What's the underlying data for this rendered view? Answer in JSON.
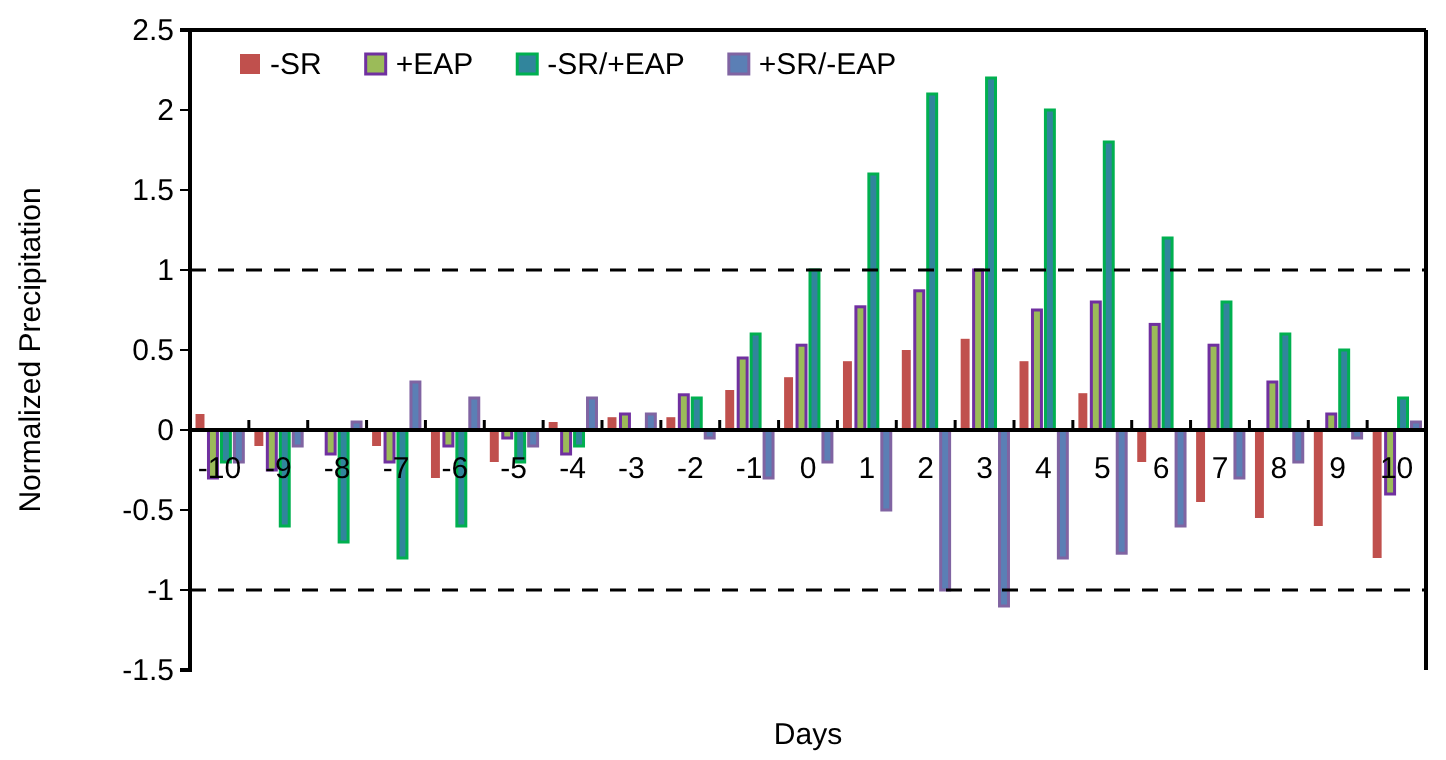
{
  "chart_data": {
    "type": "bar",
    "xlabel": "Days",
    "ylabel": "Normalized Precipitation",
    "categories": [
      "-10",
      "-9",
      "-8",
      "-7",
      "-6",
      "-5",
      "-4",
      "-3",
      "-2",
      "-1",
      "0",
      "1",
      "2",
      "3",
      "4",
      "5",
      "6",
      "7",
      "8",
      "9",
      "10"
    ],
    "series": [
      {
        "name": "-SR",
        "color": "#c0504d",
        "values": [
          0.1,
          -0.1,
          0,
          -0.1,
          -0.3,
          -0.2,
          0.05,
          0.08,
          0.08,
          0.25,
          0.33,
          0.43,
          0.5,
          0.57,
          0.43,
          0.23,
          -0.2,
          -0.45,
          -0.55,
          -0.6,
          -0.8
        ]
      },
      {
        "name": "+EAP",
        "color": "#9bbb59",
        "values": [
          -0.3,
          -0.25,
          -0.15,
          -0.2,
          -0.1,
          -0.05,
          -0.15,
          0.1,
          0.22,
          0.45,
          0.53,
          0.77,
          0.87,
          1.0,
          0.75,
          0.8,
          0.66,
          0.53,
          0.3,
          0.1,
          -0.4
        ]
      },
      {
        "name": "-SR/+EAP",
        "color": "#31859c",
        "values": [
          -0.2,
          -0.6,
          -0.7,
          -0.8,
          -0.6,
          -0.2,
          -0.1,
          0,
          0.2,
          0.6,
          1.0,
          1.6,
          2.1,
          2.2,
          2.0,
          1.8,
          1.2,
          0.8,
          0.6,
          0.5,
          0.2
        ]
      },
      {
        "name": "+SR/-EAP",
        "color": "#5b7fb5",
        "values": [
          -0.2,
          -0.1,
          0.05,
          0.3,
          0.2,
          -0.1,
          0.2,
          0.1,
          -0.05,
          -0.3,
          -0.2,
          -0.5,
          -1.0,
          -1.1,
          -0.8,
          -0.77,
          -0.6,
          -0.3,
          -0.2,
          -0.05,
          0.05
        ]
      }
    ],
    "ylim": [
      -1.5,
      2.5
    ],
    "yticks": [
      -1.5,
      -1,
      -0.5,
      0,
      0.5,
      1,
      1.5,
      2,
      2.5
    ],
    "ref_lines": [
      {
        "axis": "y",
        "value": 1,
        "line_style": "dashed"
      },
      {
        "axis": "y",
        "value": -1,
        "line_style": "dashed"
      }
    ],
    "legend": "top left",
    "grid": false
  }
}
